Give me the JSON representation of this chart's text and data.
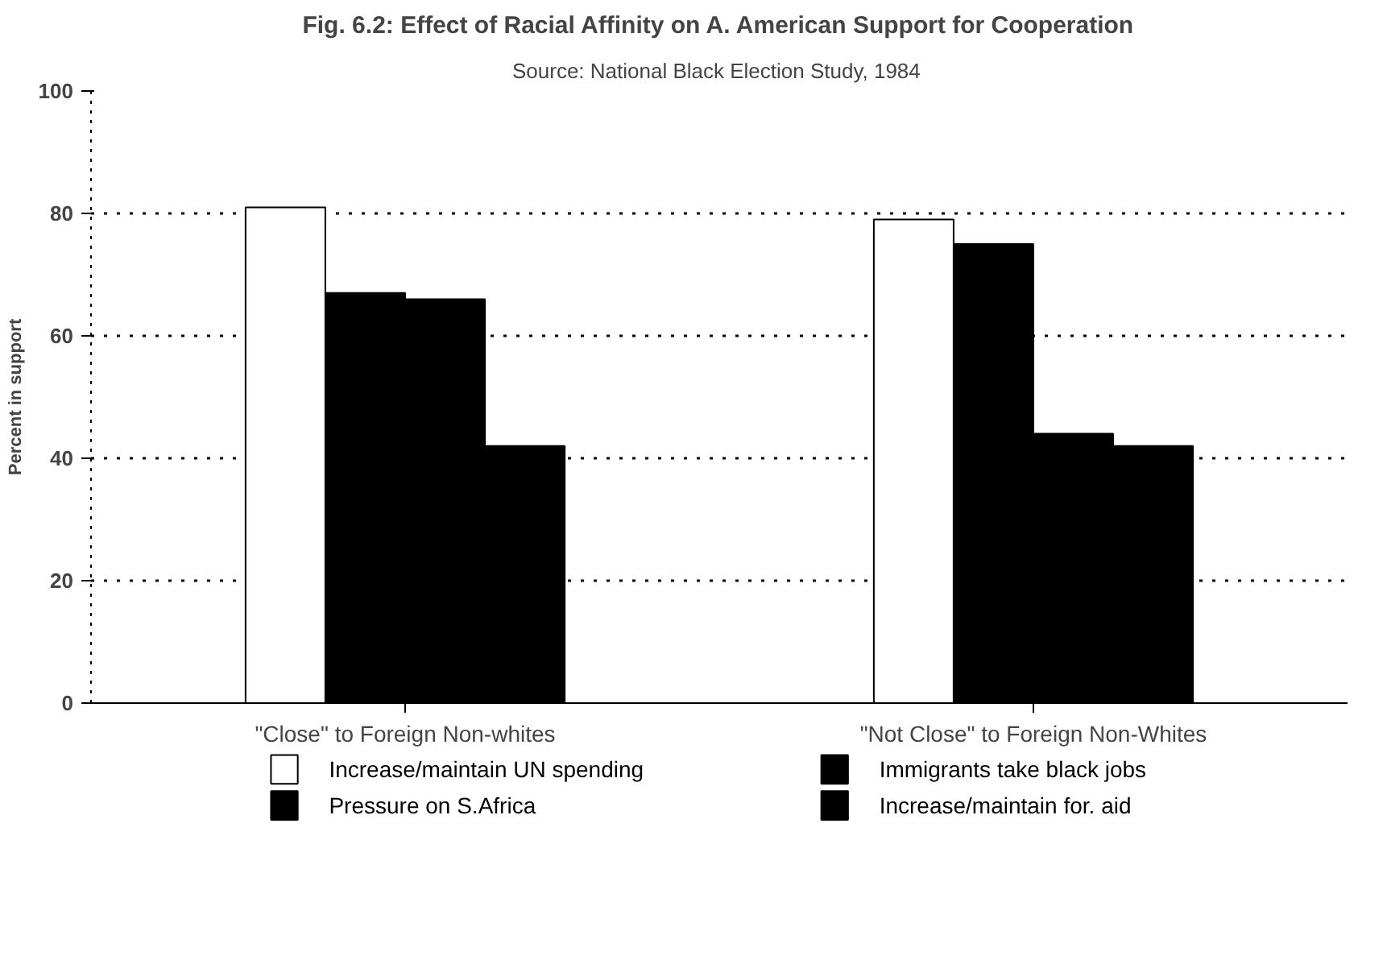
{
  "chart_data": {
    "type": "bar",
    "title": "Fig. 6.2: Effect of Racial Affinity on A. American Support for Cooperation",
    "subtitle": "Source:  National Black Election Study, 1984",
    "ylabel": "Percent in support",
    "categories": [
      "\"Close\" to Foreign Non-whites",
      "\"Not Close\" to Foreign Non-Whites"
    ],
    "series": [
      {
        "name": "Increase/maintain UN spending",
        "color": "#ffffff",
        "values": [
          81,
          79
        ]
      },
      {
        "name": "Pressure on S.Africa",
        "color": "#000000",
        "values": [
          67,
          75
        ]
      },
      {
        "name": "Immigrants take black jobs",
        "color": "#000000",
        "values": [
          66,
          44
        ]
      },
      {
        "name": "Increase/maintain for. aid",
        "color": "#000000",
        "values": [
          42,
          42
        ]
      }
    ],
    "ylim": [
      0,
      100
    ],
    "yticks": [
      0,
      20,
      40,
      60,
      80,
      100
    ],
    "grid": "y",
    "line_style": "dotted",
    "legend": "bottom"
  }
}
